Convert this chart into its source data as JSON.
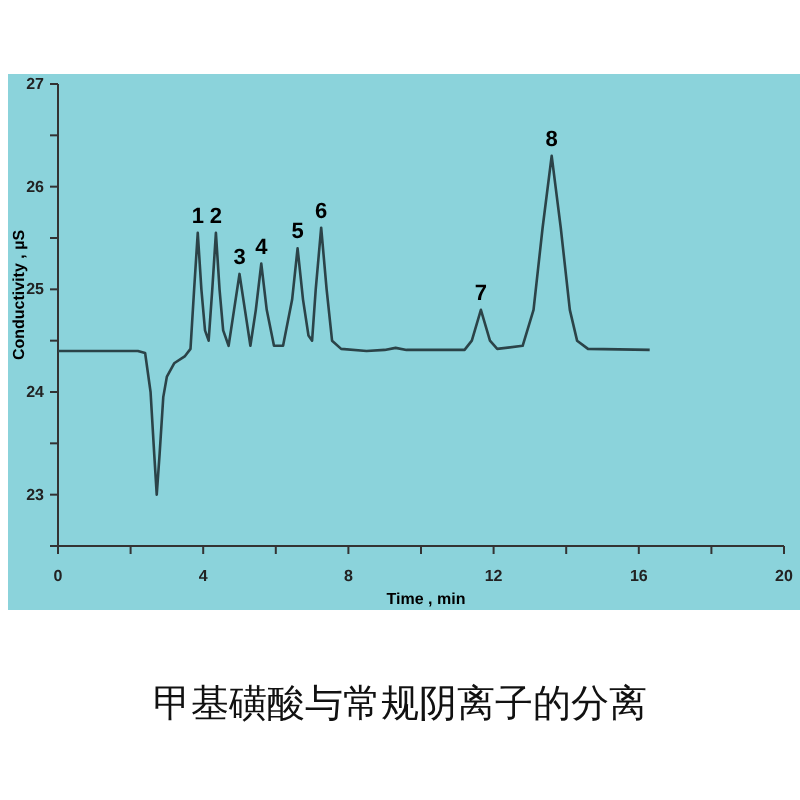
{
  "chart_data": {
    "type": "line",
    "title": "甲基磺酸与常规阴离子的分离",
    "xlabel": "Time , min",
    "ylabel": "Conductivity , µS",
    "xlim": [
      0,
      20
    ],
    "ylim": [
      22.5,
      27
    ],
    "xticks": [
      0,
      {
        "value": 2,
        "label": null
      },
      4,
      {
        "value": 6,
        "label": null
      },
      8,
      {
        "value": 10,
        "label": null
      },
      12,
      {
        "value": 14,
        "label": null
      },
      16,
      {
        "value": 18,
        "label": null
      },
      20
    ],
    "yticks": [
      {
        "value": 22.5,
        "label": null
      },
      23,
      {
        "value": 23.5,
        "label": null
      },
      24,
      {
        "value": 24.5,
        "label": null
      },
      25,
      {
        "value": 25.5,
        "label": null
      },
      26,
      {
        "value": 26.5,
        "label": null
      },
      27
    ],
    "grid": false,
    "marker": "none",
    "line_style": "solid",
    "series": [
      {
        "color": "#2b4348",
        "x": [
          0,
          2.2,
          2.4,
          2.55,
          2.65,
          2.72,
          2.8,
          2.9,
          3.0,
          3.2,
          3.5,
          3.65,
          3.75,
          3.85,
          3.95,
          4.05,
          4.15,
          4.25,
          4.35,
          4.45,
          4.55,
          4.7,
          4.85,
          5.0,
          5.15,
          5.3,
          5.45,
          5.6,
          5.75,
          5.95,
          6.2,
          6.45,
          6.6,
          6.75,
          6.9,
          7.0,
          7.1,
          7.25,
          7.4,
          7.55,
          7.8,
          8.5,
          9.0,
          9.3,
          9.6,
          11.2,
          11.4,
          11.65,
          11.9,
          12.1,
          12.8,
          13.1,
          13.35,
          13.6,
          13.85,
          14.1,
          14.3,
          14.6,
          16.3
        ],
        "values": [
          24.4,
          24.4,
          24.38,
          24.0,
          23.4,
          23.0,
          23.4,
          23.95,
          24.15,
          24.28,
          24.35,
          24.42,
          25.0,
          25.55,
          25.0,
          24.6,
          24.5,
          25.0,
          25.55,
          25.0,
          24.6,
          24.45,
          24.8,
          25.15,
          24.8,
          24.45,
          24.8,
          25.25,
          24.8,
          24.45,
          24.45,
          24.9,
          25.4,
          24.9,
          24.55,
          24.5,
          25.0,
          25.6,
          25.0,
          24.5,
          24.42,
          24.4,
          24.41,
          24.43,
          24.41,
          24.41,
          24.5,
          24.8,
          24.5,
          24.42,
          24.45,
          24.8,
          25.6,
          26.3,
          25.6,
          24.8,
          24.5,
          24.42,
          24.41
        ]
      }
    ],
    "annotations": [
      {
        "text": "1",
        "x": 3.85,
        "y": 25.55
      },
      {
        "text": "2",
        "x": 4.35,
        "y": 25.55
      },
      {
        "text": "3",
        "x": 5.0,
        "y": 25.15
      },
      {
        "text": "4",
        "x": 5.6,
        "y": 25.25
      },
      {
        "text": "5",
        "x": 6.6,
        "y": 25.4
      },
      {
        "text": "6",
        "x": 7.25,
        "y": 25.6
      },
      {
        "text": "7",
        "x": 11.65,
        "y": 24.8
      },
      {
        "text": "8",
        "x": 13.6,
        "y": 26.3
      }
    ]
  }
}
